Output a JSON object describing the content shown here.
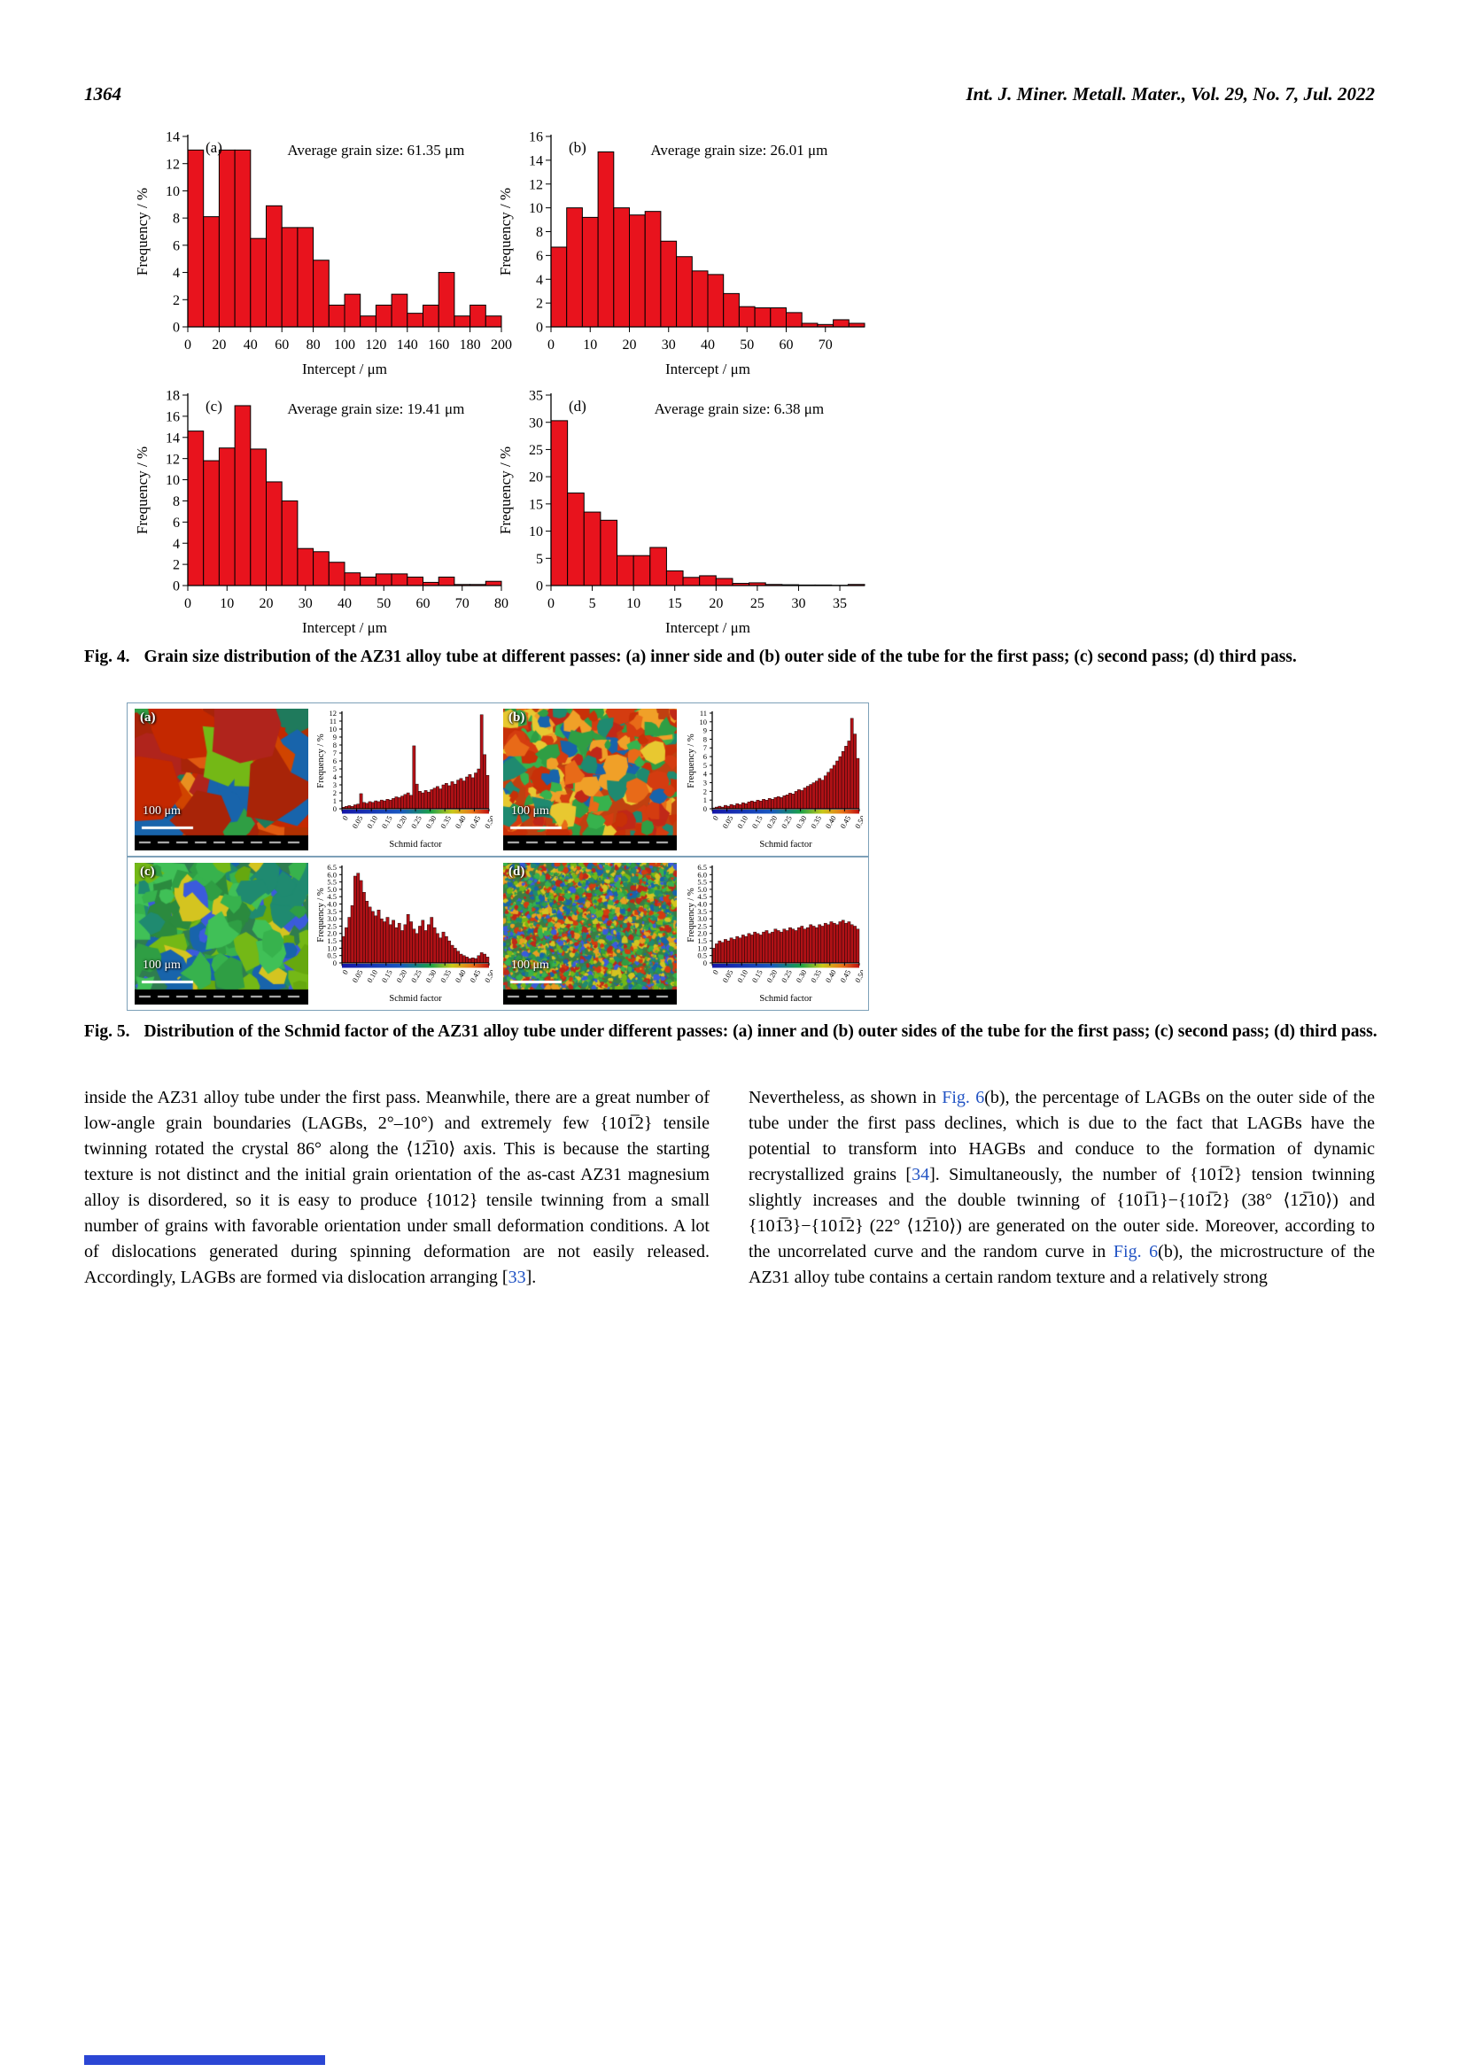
{
  "page": {
    "number": "1364",
    "journal": "Int. J. Miner. Metall. Mater., Vol. 29, No. 7, Jul. 2022"
  },
  "colors": {
    "fig4_bar_red": "#e8131d",
    "fig5_bar_red": "#b01116",
    "link_blue": "#2153c4",
    "fig5_box_border": "#7da0b8",
    "footer_blue": "#2b46d4"
  },
  "fig4": {
    "caption_label": "Fig. 4.",
    "caption_text": "Grain size distribution of the AZ31 alloy tube at different passes: (a) inner side and (b) outer side of the tube for the first pass; (c) second pass; (d) third pass."
  },
  "fig5": {
    "caption_label": "Fig. 5.",
    "caption_text": "Distribution of the Schmid factor of the AZ31 alloy tube under different passes: (a) inner and (b) outer sides of the tube for the first pass; (c) second pass; (d) third pass.",
    "panels": [
      {
        "label": "(a)",
        "scale_label": "100 μm",
        "map": {
          "seed": 11,
          "bg": "#b03000",
          "palette": [
            "#c42800",
            "#e05a10",
            "#d04400",
            "#a82408",
            "#e89020",
            "#2f9e44",
            "#1f7a5c",
            "#74b816",
            "#1864ab",
            "#b0241c"
          ],
          "grains": 55,
          "rmin": 14,
          "rmax": 46
        }
      },
      {
        "label": "(b)",
        "scale_label": "100 μm",
        "map": {
          "seed": 22,
          "bg": "#c04010",
          "palette": [
            "#d43c10",
            "#e86a18",
            "#f0a028",
            "#c83008",
            "#e8c830",
            "#2f9e44",
            "#37b24d",
            "#1f8a70",
            "#1864ab",
            "#c02818"
          ],
          "grains": 260,
          "rmin": 5,
          "rmax": 14
        }
      },
      {
        "label": "(c)",
        "scale_label": "100 μm",
        "map": {
          "seed": 33,
          "bg": "#2f7d4f",
          "palette": [
            "#2f9e44",
            "#37b24d",
            "#74b816",
            "#1f8a70",
            "#1864ab",
            "#3b5bdb",
            "#d4c420",
            "#40c057",
            "#2b8a3e",
            "#66a80f"
          ],
          "grains": 150,
          "rmin": 7,
          "rmax": 20
        }
      },
      {
        "label": "(d)",
        "scale_label": "100 μm",
        "map": {
          "seed": 44,
          "bg": "#3a7d44",
          "palette": [
            "#2f9e44",
            "#74b816",
            "#1864ab",
            "#3b5bdb",
            "#d43c10",
            "#e8a020",
            "#1f8a70",
            "#37b24d",
            "#c02818",
            "#d4c420"
          ],
          "grains": 2600,
          "rmin": 1,
          "rmax": 4
        }
      }
    ]
  },
  "chart_data": [
    {
      "id": "fig4a",
      "type": "bar",
      "panel_label": "(a)",
      "annotation": "Average grain size: 61.35 μm",
      "xlabel": "Intercept / μm",
      "ylabel": "Frequency / %",
      "xlim": [
        0,
        200
      ],
      "ylim": [
        0,
        14
      ],
      "xticks": [
        0,
        20,
        40,
        60,
        80,
        100,
        120,
        140,
        160,
        180,
        200
      ],
      "yticks": [
        0,
        2,
        4,
        6,
        8,
        10,
        12,
        14
      ],
      "bin_start": 0,
      "bin_width": 10,
      "values": [
        13,
        8.1,
        13,
        13,
        6.5,
        8.9,
        7.3,
        7.3,
        4.9,
        1.6,
        2.4,
        0.8,
        1.6,
        2.4,
        1.0,
        1.6,
        4.0,
        0.8,
        1.6,
        0.8
      ],
      "bar_color": "#e8131d"
    },
    {
      "id": "fig4b",
      "type": "bar",
      "panel_label": "(b)",
      "annotation": "Average grain size: 26.01 μm",
      "xlabel": "Intercept / μm",
      "ylabel": "Frequency / %",
      "xlim": [
        0,
        80
      ],
      "ylim": [
        0,
        16
      ],
      "xticks": [
        0,
        10,
        20,
        30,
        40,
        50,
        60,
        70
      ],
      "yticks": [
        0,
        2,
        4,
        6,
        8,
        10,
        12,
        14,
        16
      ],
      "bin_start": 0,
      "bin_width": 4,
      "values": [
        6.7,
        10,
        9.2,
        14.7,
        10,
        9.4,
        9.7,
        7.2,
        5.9,
        4.7,
        4.4,
        2.8,
        1.7,
        1.6,
        1.6,
        1.2,
        0.3,
        0.2,
        0.6,
        0.3
      ],
      "bar_color": "#e8131d"
    },
    {
      "id": "fig4c",
      "type": "bar",
      "panel_label": "(c)",
      "annotation": "Average grain size: 19.41 μm",
      "xlabel": "Intercept / μm",
      "ylabel": "Frequency / %",
      "xlim": [
        0,
        80
      ],
      "ylim": [
        0,
        18
      ],
      "xticks": [
        0,
        10,
        20,
        30,
        40,
        50,
        60,
        70,
        80
      ],
      "yticks": [
        0,
        2,
        4,
        6,
        8,
        10,
        12,
        14,
        16,
        18
      ],
      "bin_start": 0,
      "bin_width": 4,
      "values": [
        14.6,
        11.8,
        13,
        17,
        12.9,
        9.8,
        8,
        3.5,
        3.2,
        2.2,
        1.2,
        0.8,
        1.1,
        1.1,
        0.8,
        0.3,
        0.8,
        0.1,
        0.1,
        0.4
      ],
      "bar_color": "#e8131d"
    },
    {
      "id": "fig4d",
      "type": "bar",
      "panel_label": "(d)",
      "annotation": "Average grain size: 6.38 μm",
      "xlabel": "Intercept / μm",
      "ylabel": "Frequency / %",
      "xlim": [
        0,
        38
      ],
      "ylim": [
        0,
        35
      ],
      "xticks": [
        0,
        5,
        10,
        15,
        20,
        25,
        30,
        35
      ],
      "yticks": [
        0,
        5,
        10,
        15,
        20,
        25,
        30,
        35
      ],
      "bin_start": 0,
      "bin_width": 2,
      "values": [
        30.3,
        17,
        13.5,
        12,
        5.5,
        5.5,
        7,
        2.7,
        1.5,
        1.8,
        1.3,
        0.4,
        0.5,
        0.2,
        0.15,
        0.1,
        0.1,
        0.05,
        0.2
      ],
      "bar_color": "#e8131d"
    },
    {
      "id": "fig5a_hist",
      "type": "bar",
      "xlabel": "Schmid factor",
      "ylabel": "Frequency / %",
      "xlim": [
        0,
        0.5
      ],
      "ylim": [
        0,
        12
      ],
      "xticks": [
        0,
        0.05,
        0.1,
        0.15,
        0.2,
        0.25,
        0.3,
        0.35,
        0.4,
        0.45,
        0.5
      ],
      "xtick_labels": [
        "0",
        "0.05",
        "0.10",
        "0.15",
        "0.20",
        "0.25",
        "0.30",
        "0.35",
        "0.40",
        "0.45",
        "0.50"
      ],
      "yticks": [
        0,
        1,
        2,
        3,
        4,
        5,
        6,
        7,
        8,
        9,
        10,
        11,
        12
      ],
      "bin_start": 0,
      "bin_width": 0.01,
      "values": [
        0.2,
        0.3,
        0.4,
        0.3,
        0.5,
        0.6,
        1.9,
        0.8,
        0.7,
        0.9,
        0.8,
        1.0,
        0.9,
        1.1,
        1.0,
        1.2,
        1.1,
        1.3,
        1.5,
        1.4,
        1.6,
        1.8,
        2.0,
        1.7,
        7.9,
        3.1,
        2.2,
        2.0,
        2.3,
        2.1,
        2.4,
        2.6,
        2.8,
        2.5,
        3.0,
        3.2,
        2.9,
        3.4,
        3.1,
        3.6,
        3.8,
        3.5,
        4.0,
        4.3,
        3.9,
        4.5,
        5.0,
        11.8,
        6.8,
        4.2
      ],
      "bar_color": "#b01116",
      "color_strip": true
    },
    {
      "id": "fig5b_hist",
      "type": "bar",
      "xlabel": "Schmid factor",
      "ylabel": "Frequency / %",
      "xlim": [
        0,
        0.5
      ],
      "ylim": [
        0,
        11
      ],
      "xticks": [
        0,
        0.05,
        0.1,
        0.15,
        0.2,
        0.25,
        0.3,
        0.35,
        0.4,
        0.45,
        0.5
      ],
      "xtick_labels": [
        "0",
        "0.05",
        "0.10",
        "0.15",
        "0.20",
        "0.25",
        "0.30",
        "0.35",
        "0.40",
        "0.45",
        "0.50"
      ],
      "yticks": [
        0,
        1,
        2,
        3,
        4,
        5,
        6,
        7,
        8,
        9,
        10,
        11
      ],
      "bin_start": 0,
      "bin_width": 0.01,
      "values": [
        0.1,
        0.2,
        0.3,
        0.2,
        0.4,
        0.3,
        0.5,
        0.4,
        0.6,
        0.5,
        0.7,
        0.6,
        0.8,
        0.9,
        0.8,
        1.0,
        0.9,
        1.1,
        1.0,
        1.2,
        1.1,
        1.3,
        1.4,
        1.3,
        1.5,
        1.6,
        1.8,
        1.7,
        2.0,
        2.2,
        2.1,
        2.4,
        2.6,
        2.8,
        3.0,
        3.2,
        3.5,
        3.3,
        3.8,
        4.2,
        4.6,
        5.0,
        5.5,
        6.0,
        6.6,
        7.2,
        7.8,
        10.4,
        8.6,
        5.8
      ],
      "bar_color": "#b01116",
      "color_strip": true
    },
    {
      "id": "fig5c_hist",
      "type": "bar",
      "xlabel": "Schmid factor",
      "ylabel": "Frequency / %",
      "xlim": [
        0,
        0.5
      ],
      "ylim": [
        0,
        6.5
      ],
      "xticks": [
        0,
        0.05,
        0.1,
        0.15,
        0.2,
        0.25,
        0.3,
        0.35,
        0.4,
        0.45,
        0.5
      ],
      "xtick_labels": [
        "0",
        "0.05",
        "0.10",
        "0.15",
        "0.20",
        "0.25",
        "0.30",
        "0.35",
        "0.40",
        "0.45",
        "0.50"
      ],
      "yticks": [
        0,
        0.5,
        1,
        1.5,
        2,
        2.5,
        3,
        3.5,
        4,
        4.5,
        5,
        5.5,
        6,
        6.5
      ],
      "ytick_labels": [
        "0",
        "0.5",
        "1.0",
        "1.5",
        "2.0",
        "2.5",
        "3.0",
        "3.5",
        "4.0",
        "4.5",
        "5.0",
        "5.5",
        "6.0",
        "6.5"
      ],
      "bin_start": 0,
      "bin_width": 0.01,
      "values": [
        1.8,
        2.4,
        3.1,
        3.9,
        5.9,
        6.1,
        5.6,
        4.8,
        4.2,
        3.8,
        3.5,
        3.2,
        3.6,
        3.0,
        2.8,
        3.1,
        2.6,
        2.9,
        2.4,
        2.7,
        2.2,
        2.6,
        3.3,
        2.8,
        2.3,
        2.0,
        2.5,
        2.9,
        2.2,
        2.6,
        3.1,
        2.4,
        2.0,
        1.7,
        2.1,
        1.8,
        1.5,
        1.2,
        1.0,
        0.8,
        0.6,
        0.5,
        0.4,
        0.3,
        0.35,
        0.3,
        0.5,
        0.7,
        0.6,
        0.4
      ],
      "bar_color": "#b01116",
      "color_strip": true
    },
    {
      "id": "fig5d_hist",
      "type": "bar",
      "xlabel": "Schmid factor",
      "ylabel": "Frequency / %",
      "xlim": [
        0,
        0.5
      ],
      "ylim": [
        0,
        6.5
      ],
      "xticks": [
        0,
        0.05,
        0.1,
        0.15,
        0.2,
        0.25,
        0.3,
        0.35,
        0.4,
        0.45,
        0.5
      ],
      "xtick_labels": [
        "0",
        "0.05",
        "0.10",
        "0.15",
        "0.20",
        "0.25",
        "0.30",
        "0.35",
        "0.40",
        "0.45",
        "0.50"
      ],
      "yticks": [
        0,
        0.5,
        1,
        1.5,
        2,
        2.5,
        3,
        3.5,
        4,
        4.5,
        5,
        5.5,
        6,
        6.5
      ],
      "ytick_labels": [
        "0",
        "0.5",
        "1.0",
        "1.5",
        "2.0",
        "2.5",
        "3.0",
        "3.5",
        "4.0",
        "4.5",
        "5.0",
        "5.5",
        "6.0",
        "6.5"
      ],
      "bin_start": 0,
      "bin_width": 0.01,
      "values": [
        1.0,
        1.3,
        1.5,
        1.4,
        1.6,
        1.5,
        1.7,
        1.6,
        1.8,
        1.7,
        1.9,
        1.8,
        2.0,
        1.9,
        2.1,
        2.0,
        1.9,
        2.1,
        2.2,
        2.0,
        2.1,
        2.3,
        2.2,
        2.1,
        2.3,
        2.2,
        2.4,
        2.3,
        2.2,
        2.4,
        2.5,
        2.3,
        2.4,
        2.6,
        2.5,
        2.4,
        2.6,
        2.5,
        2.7,
        2.6,
        2.8,
        2.7,
        2.6,
        2.8,
        2.9,
        2.7,
        2.8,
        2.6,
        2.5,
        2.3
      ],
      "bar_color": "#b01116",
      "color_strip": true
    }
  ],
  "body_text": {
    "left": [
      {
        "t": "inside the AZ31 alloy tube under the first pass. Meanwhile, there are a great number of low-angle grain boundaries (LAGBs, 2°–10°) and extremely few {101̅2} tensile twinning rotated the crystal 86° along the ⟨12̅10⟩ axis. This is because the starting texture is not distinct and the initial grain orientation of the as-cast AZ31 magnesium alloy is disordered, so it is easy to produce {1012} tensile twinning from a small number of grains with favorable orientation under small deformation conditions. A lot of dislocations generated during spinning deformation are not easily released. Accordingly, LAGBs are formed via dislocation arranging ["
      },
      {
        "t": "33",
        "link": true
      },
      {
        "t": "]."
      }
    ],
    "right": [
      {
        "t": "Nevertheless, as shown in "
      },
      {
        "t": "Fig. 6",
        "link": true
      },
      {
        "t": "(b), the percentage of LAGBs on the outer side of the tube under the first pass declines, which is due to the fact that LAGBs have the potential to transform into HAGBs and conduce to the formation of dynamic recrystallized grains ["
      },
      {
        "t": "34",
        "link": true
      },
      {
        "t": "]. Simultaneously, the number of {101̅2} tension twinning slightly increases and the double twinning of {101̅1}−{101̅2} (38° ⟨12̅10⟩) and {101̅3}−{101̅2} (22° ⟨12̅10⟩) are generated on the outer side. Moreover, according to the uncorrelated curve and the random curve in "
      },
      {
        "t": "Fig. 6",
        "link": true
      },
      {
        "t": "(b), the microstructure of the AZ31 alloy tube contains a certain random texture and a relatively strong"
      }
    ]
  }
}
